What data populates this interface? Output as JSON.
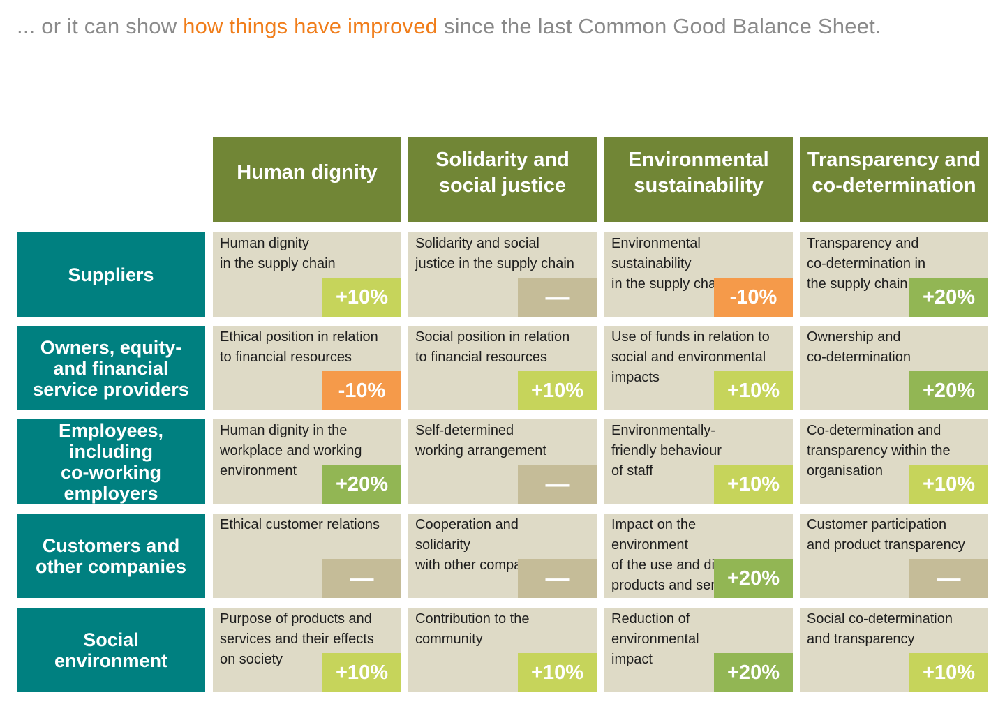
{
  "headline": {
    "before": "... or it can show ",
    "highlight": "how things have improved",
    "after": " since the last Common Good Balance Sheet."
  },
  "colors": {
    "column_header": "#718636",
    "row_header": "#008080",
    "cell": "#dedac6",
    "badge_light_green": "#c6d45b",
    "badge_green": "#92b654",
    "badge_orange": "#f59a4a",
    "badge_neutral": "#c5bc98",
    "highlight": "#f07d1a"
  },
  "columns": [
    "Human dignity",
    "Solidarity and\nsocial justice",
    "Environmental\nsustainability",
    "Transparency and\nco-determination"
  ],
  "rows": [
    {
      "label": "Suppliers",
      "cells": [
        {
          "text": "Human dignity\nin the supply chain",
          "change": "+10%",
          "style": "light"
        },
        {
          "text": "Solidarity and social\njustice in the supply chain",
          "change": "—",
          "style": "neutral"
        },
        {
          "text": "Environmental\nsustainability\nin the supply chain",
          "change": "-10%",
          "style": "neg"
        },
        {
          "text": "Transparency and\nco-determination in\nthe supply chain",
          "change": "+20%",
          "style": "dark"
        }
      ]
    },
    {
      "label": "Owners, equity-\nand financial\nservice providers",
      "cells": [
        {
          "text": "Ethical position in relation\nto financial resources",
          "change": "-10%",
          "style": "neg"
        },
        {
          "text": "Social position in relation\nto financial resources",
          "change": "+10%",
          "style": "light"
        },
        {
          "text": "Use of funds in relation to\nsocial and environmental\nimpacts",
          "change": "+10%",
          "style": "light"
        },
        {
          "text": "Ownership and\nco-determination",
          "change": "+20%",
          "style": "dark"
        }
      ]
    },
    {
      "label": "Employees,\nincluding\nco-working\nemployers",
      "cells": [
        {
          "text": "Human dignity in the\nworkplace and working\nenvironment",
          "change": "+20%",
          "style": "dark"
        },
        {
          "text": "Self-determined\nworking arrangement",
          "change": "—",
          "style": "neutral"
        },
        {
          "text": "Environmentally-\nfriendly behaviour\nof staff",
          "change": "+10%",
          "style": "light"
        },
        {
          "text": "Co-determination and\ntransparency within the\norganisation",
          "change": "+10%",
          "style": "light"
        }
      ]
    },
    {
      "label": "Customers and\nother companies",
      "cells": [
        {
          "text": "Ethical customer relations",
          "change": "—",
          "style": "neutral"
        },
        {
          "text": "Cooperation and\nsolidarity\nwith other companies",
          "change": "—",
          "style": "neutral"
        },
        {
          "text": "Impact on the\nenvironment\nof the use and disposal of\nproducts and services",
          "change": "+20%",
          "style": "dark"
        },
        {
          "text": "Customer participation\nand product transparency",
          "change": "—",
          "style": "neutral"
        }
      ]
    },
    {
      "label": "Social\nenvironment",
      "cells": [
        {
          "text": "Purpose of products and\nservices and their effects\non society",
          "change": "+10%",
          "style": "light"
        },
        {
          "text": "Contribution to the\ncommunity",
          "change": "+10%",
          "style": "light"
        },
        {
          "text": "Reduction of\nenvironmental\nimpact",
          "change": "+20%",
          "style": "dark"
        },
        {
          "text": "Social co-determination\nand transparency",
          "change": "+10%",
          "style": "light"
        }
      ]
    }
  ]
}
